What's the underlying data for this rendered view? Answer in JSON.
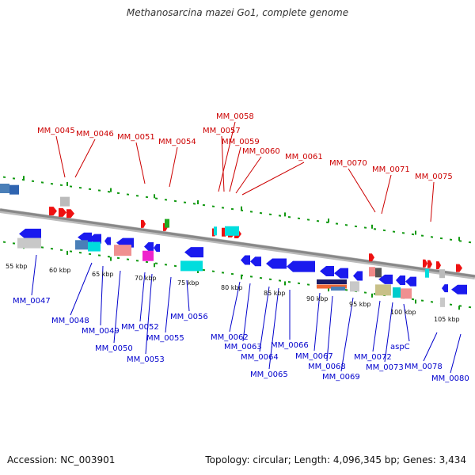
{
  "title": "Methanosarcina mazei Go1, complete genome",
  "footer": {
    "accession": "Accession: NC_003901",
    "summary": "Topology: circular; Length: 4,096,345 bp; Genes: 3,434"
  },
  "colors": {
    "top_label": "#cc0000",
    "bottom_label": "#0000cc",
    "backbone": "#888888",
    "tick": "#119911"
  },
  "scale_labels": [
    "55 kbp",
    "60 kbp",
    "65 kbp",
    "70 kbp",
    "75 kbp",
    "80 kbp",
    "85 kbp",
    "90 kbp",
    "95 kbp",
    "100 kbp",
    "105 kbp"
  ],
  "top_genes": [
    "MM_0045",
    "MM_0046",
    "MM_0051",
    "MM_0054",
    "MM_0058",
    "MM_0057",
    "MM_0059",
    "MM_0060",
    "MM_0061",
    "MM_0070",
    "MM_0071",
    "MM_0075"
  ],
  "bottom_genes": [
    "MM_0047",
    "MM_0048",
    "MM_0049",
    "MM_0050",
    "MM_0052",
    "MM_0053",
    "MM_0055",
    "MM_0056",
    "MM_0062",
    "MM_0063",
    "MM_0064",
    "MM_0065",
    "MM_0066",
    "MM_0067",
    "MM_0068",
    "MM_0069",
    "MM_0072",
    "MM_0073",
    "aspC",
    "MM_0078",
    "MM_0080"
  ]
}
